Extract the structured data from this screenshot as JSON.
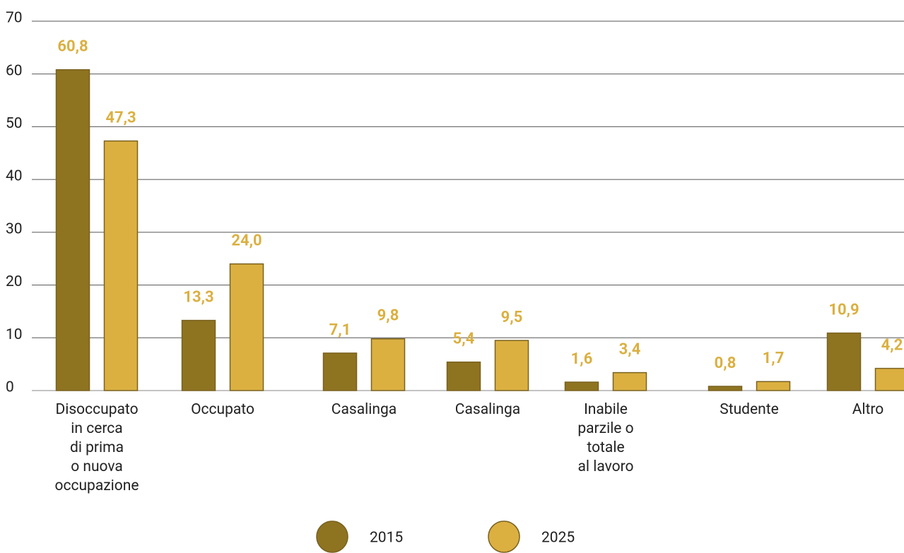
{
  "chart_data": {
    "type": "bar",
    "categories": [
      "Disoccupato\nin cerca\ndi prima\no nuova\noccupazione",
      "Occupato",
      "Casalinga",
      "Casalinga",
      "Inabile\nparzile o\ntotale\nal lavoro",
      "Studente",
      "Altro"
    ],
    "series": [
      {
        "name": "2015",
        "color": "#8e7321",
        "values": [
          60.8,
          13.3,
          7.1,
          5.4,
          1.6,
          0.8,
          10.9
        ],
        "value_labels": [
          "60,8",
          "13,3",
          "7,1",
          "5,4",
          "1,6",
          "0,8",
          "10,9"
        ]
      },
      {
        "name": "2025",
        "color": "#dbb041",
        "values": [
          47.3,
          24.0,
          9.8,
          9.5,
          3.4,
          1.7,
          4.2
        ],
        "value_labels": [
          "47,3",
          "24,0",
          "9,8",
          "9,5",
          "3,4",
          "1,7",
          "4,2"
        ]
      }
    ],
    "ylim": [
      0,
      70
    ],
    "yticks": [
      0,
      10,
      20,
      30,
      40,
      50,
      60,
      70
    ],
    "grid": true,
    "legend": "bottom"
  }
}
